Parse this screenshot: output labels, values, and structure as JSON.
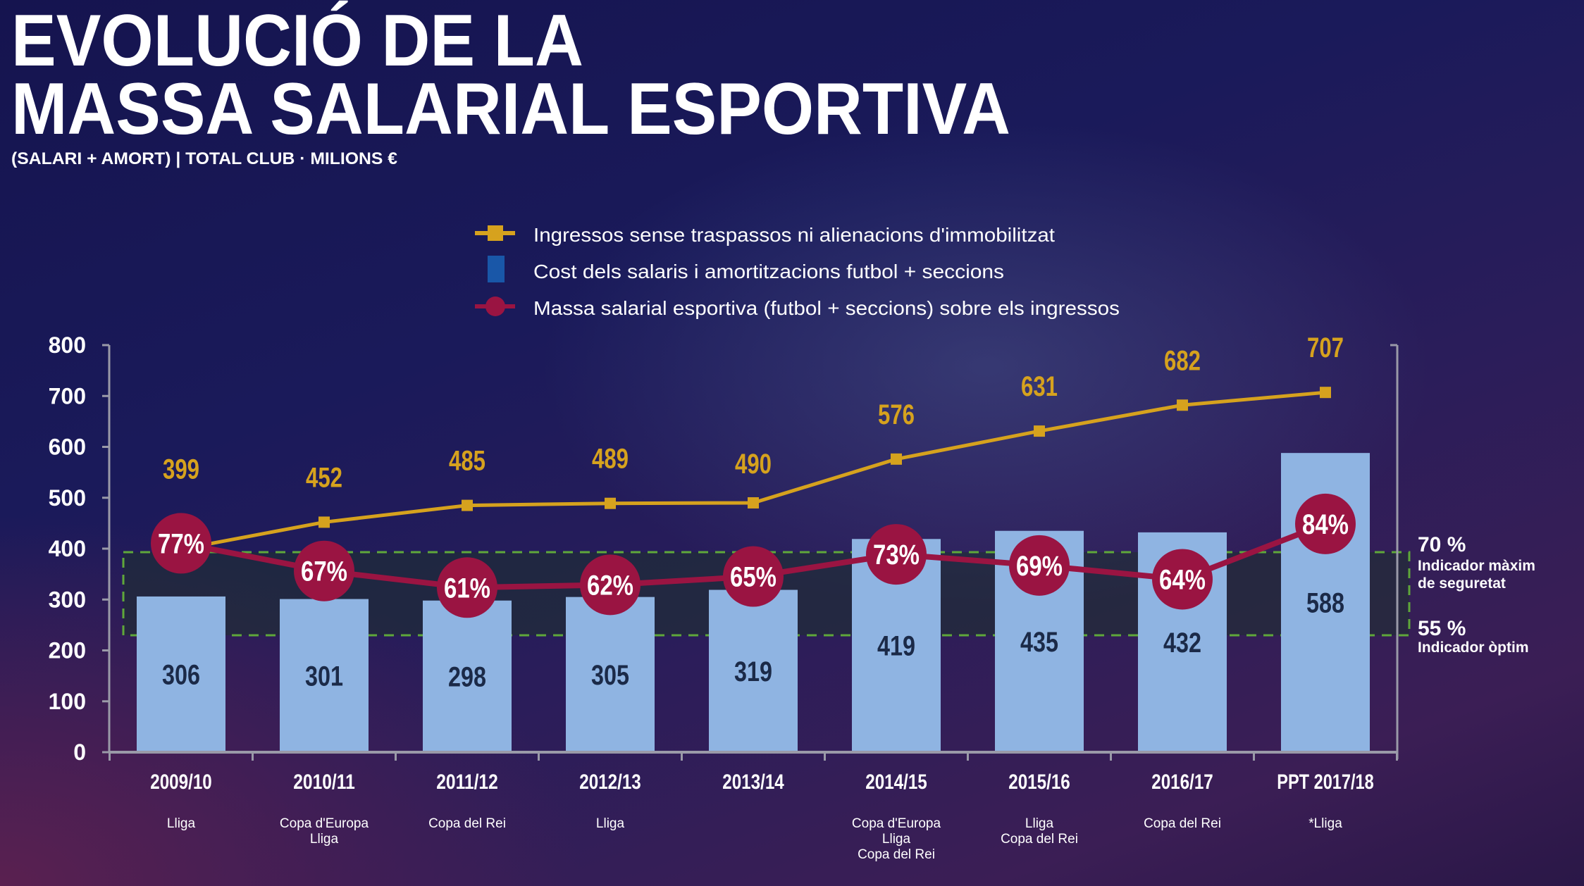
{
  "title_line1": "EVOLUCIÓ DE LA",
  "title_line2": "MASSA SALARIAL ESPORTIVA",
  "subtitle": "(SALARI + AMORT) | TOTAL CLUB · MILIONS €",
  "colors": {
    "income": "#d6a21e",
    "bars": "#8fb4e2",
    "bar_text": "#1b2a48",
    "ratio": "#9a1442",
    "band": "#5fa83a",
    "axis": "#9a9aa8"
  },
  "chart_data": {
    "type": "bar+line",
    "categories": [
      "2009/10",
      "2010/11",
      "2011/12",
      "2012/13",
      "2013/14",
      "2014/15",
      "2015/16",
      "2016/17",
      "PPT 2017/18"
    ],
    "titles_won": [
      [
        "Lliga"
      ],
      [
        "Copa d'Europa",
        "Lliga"
      ],
      [
        "Copa del Rei"
      ],
      [
        "Lliga"
      ],
      [],
      [
        "Copa d'Europa",
        "Lliga",
        "Copa del Rei"
      ],
      [
        "Lliga",
        "Copa del Rei"
      ],
      [
        "Copa del Rei"
      ],
      [
        "*Lliga"
      ]
    ],
    "ylim": [
      0,
      800
    ],
    "yticks": [
      "0",
      "100",
      "200",
      "300",
      "400",
      "500",
      "600",
      "700",
      "800"
    ],
    "grid": false,
    "legend_position": "top-center",
    "series": [
      {
        "name": "Ingressos sense traspassos ni alienacions d'immobilitzat",
        "type": "line",
        "icon": "gold-square-line",
        "values": [
          399,
          452,
          485,
          489,
          490,
          576,
          631,
          682,
          707
        ]
      },
      {
        "name": "Cost dels salaris i amortitzacions futbol + seccions",
        "type": "bar",
        "icon": "blue-bar",
        "values": [
          306,
          301,
          298,
          305,
          319,
          419,
          435,
          432,
          588
        ]
      },
      {
        "name": "Massa salarial esportiva (futbol  + seccions) sobre els ingressos",
        "type": "line",
        "icon": "red-circle-line",
        "values": [
          77,
          67,
          61,
          62,
          65,
          73,
          69,
          64,
          84
        ],
        "labels": [
          "77%",
          "67%",
          "61%",
          "62%",
          "65%",
          "73%",
          "69%",
          "64%",
          "84%"
        ]
      }
    ],
    "reference_band": {
      "upper": {
        "value": "70 %",
        "label_line1": "Indicador màxim",
        "label_line2": "de seguretat"
      },
      "lower": {
        "value": "55 %",
        "label": "Indicador òptim"
      }
    }
  }
}
